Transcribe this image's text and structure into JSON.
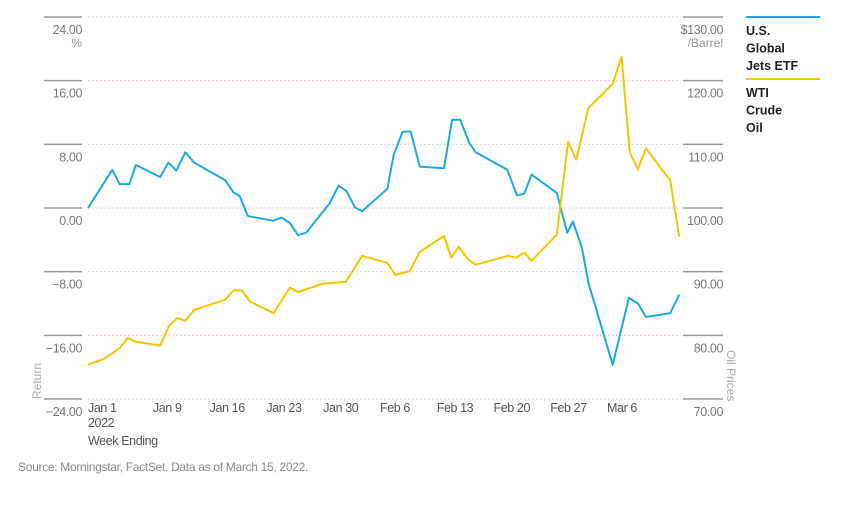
{
  "chart_data": {
    "type": "line",
    "xlabel": "Week Ending",
    "x_year": "2022",
    "x_units": "days since Jan 1, 2022",
    "x_range": [
      0,
      73
    ],
    "x_ticks": [
      {
        "day": 0,
        "label": "Jan 1"
      },
      {
        "day": 8,
        "label": "Jan 9"
      },
      {
        "day": 15,
        "label": "Jan 16"
      },
      {
        "day": 22,
        "label": "Jan 23"
      },
      {
        "day": 29,
        "label": "Jan 30"
      },
      {
        "day": 36,
        "label": "Feb 6"
      },
      {
        "day": 43,
        "label": "Feb 13"
      },
      {
        "day": 50,
        "label": "Feb 20"
      },
      {
        "day": 57,
        "label": "Feb 27"
      },
      {
        "day": 64,
        "label": "Mar 6"
      }
    ],
    "y_left": {
      "label": "Return",
      "unit": "%",
      "range": [
        -24,
        24
      ],
      "ticks": [
        "24.00",
        "16.00",
        "8.00",
        "0.00",
        "−8.00",
        "−16.00",
        "−24.00"
      ],
      "tick_values": [
        24,
        16,
        8,
        0,
        -8,
        -16,
        -24
      ]
    },
    "y_right": {
      "label": "Oil Prices",
      "unit": "/Barrel",
      "range": [
        70,
        130
      ],
      "ticks": [
        "$130.00",
        "120.00",
        "110.00",
        "100.00",
        "90.00",
        "80.00",
        "70.00"
      ],
      "tick_values": [
        130,
        120,
        110,
        100,
        90,
        80,
        70
      ]
    },
    "grid": true,
    "legend_position": "right",
    "series": [
      {
        "name": "U.S. Global Jets ETF",
        "legend_lines": [
          "U.S.",
          "Global",
          "Jets ETF"
        ],
        "axis": "left",
        "color": "#1ba9e1",
        "points": [
          [
            0,
            0.0
          ],
          [
            3.0,
            4.8
          ],
          [
            3.9,
            3.0
          ],
          [
            5.1,
            3.0
          ],
          [
            5.9,
            5.4
          ],
          [
            8.9,
            3.9
          ],
          [
            9.9,
            5.7
          ],
          [
            10.9,
            4.7
          ],
          [
            12.0,
            7.0
          ],
          [
            13.1,
            5.7
          ],
          [
            16.9,
            3.5
          ],
          [
            17.9,
            2.0
          ],
          [
            18.7,
            1.5
          ],
          [
            19.7,
            -1.0
          ],
          [
            22.8,
            -1.6
          ],
          [
            23.9,
            -1.2
          ],
          [
            24.9,
            -1.9
          ],
          [
            25.9,
            -3.4
          ],
          [
            26.9,
            -3.1
          ],
          [
            29.8,
            0.6
          ],
          [
            30.9,
            2.8
          ],
          [
            31.9,
            2.1
          ],
          [
            32.9,
            0.1
          ],
          [
            33.8,
            -0.4
          ],
          [
            36.9,
            2.4
          ],
          [
            37.7,
            6.7
          ],
          [
            38.8,
            9.6
          ],
          [
            39.8,
            9.6
          ],
          [
            40.9,
            5.2
          ],
          [
            43.9,
            5.0
          ],
          [
            44.9,
            11.1
          ],
          [
            45.9,
            11.1
          ],
          [
            47.0,
            8.2
          ],
          [
            47.8,
            7.0
          ],
          [
            51.7,
            4.8
          ],
          [
            52.9,
            1.6
          ],
          [
            53.8,
            1.8
          ],
          [
            54.7,
            4.2
          ],
          [
            57.8,
            1.9
          ],
          [
            58.6,
            -1.2
          ],
          [
            59.1,
            -3.1
          ],
          [
            59.8,
            -1.7
          ],
          [
            60.9,
            -5.0
          ],
          [
            61.7,
            -9.4
          ],
          [
            64.7,
            -19.7
          ],
          [
            65.6,
            -15.9
          ],
          [
            66.7,
            -11.3
          ],
          [
            67.8,
            -12.0
          ],
          [
            68.8,
            -13.7
          ],
          [
            71.8,
            -13.2
          ],
          [
            72.9,
            -10.9
          ]
        ]
      },
      {
        "name": "WTI Crude Oil",
        "legend_lines": [
          "WTI",
          "Crude",
          "Oil"
        ],
        "axis": "right",
        "color": "#f5c400",
        "points": [
          [
            0,
            75.4
          ],
          [
            2.0,
            76.3
          ],
          [
            3.9,
            78.0
          ],
          [
            4.9,
            79.6
          ],
          [
            5.9,
            79.0
          ],
          [
            8.9,
            78.4
          ],
          [
            10.0,
            81.5
          ],
          [
            11.0,
            82.7
          ],
          [
            12.0,
            82.3
          ],
          [
            13.1,
            84.0
          ],
          [
            16.9,
            85.6
          ],
          [
            18.0,
            87.1
          ],
          [
            19.0,
            87.0
          ],
          [
            20.0,
            85.3
          ],
          [
            22.9,
            83.5
          ],
          [
            24.9,
            87.5
          ],
          [
            25.9,
            86.8
          ],
          [
            28.9,
            88.1
          ],
          [
            29.8,
            88.2
          ],
          [
            31.8,
            88.4
          ],
          [
            33.8,
            92.5
          ],
          [
            36.9,
            91.4
          ],
          [
            37.9,
            89.5
          ],
          [
            39.7,
            90.1
          ],
          [
            40.9,
            93.1
          ],
          [
            43.9,
            95.6
          ],
          [
            44.8,
            92.2
          ],
          [
            45.7,
            93.9
          ],
          [
            46.9,
            91.9
          ],
          [
            47.8,
            91.1
          ],
          [
            51.8,
            92.5
          ],
          [
            52.8,
            92.2
          ],
          [
            53.8,
            93.0
          ],
          [
            54.7,
            91.7
          ],
          [
            57.8,
            95.8
          ],
          [
            59.2,
            110.4
          ],
          [
            60.2,
            107.6
          ],
          [
            61.7,
            115.7
          ],
          [
            64.7,
            119.5
          ],
          [
            65.8,
            123.7
          ],
          [
            66.8,
            108.8
          ],
          [
            67.8,
            106.1
          ],
          [
            68.8,
            109.4
          ],
          [
            71.8,
            104.3
          ],
          [
            72.9,
            95.5
          ]
        ]
      }
    ],
    "source": "Source: Morningstar, FactSet. Data as of March 15, 2022."
  }
}
